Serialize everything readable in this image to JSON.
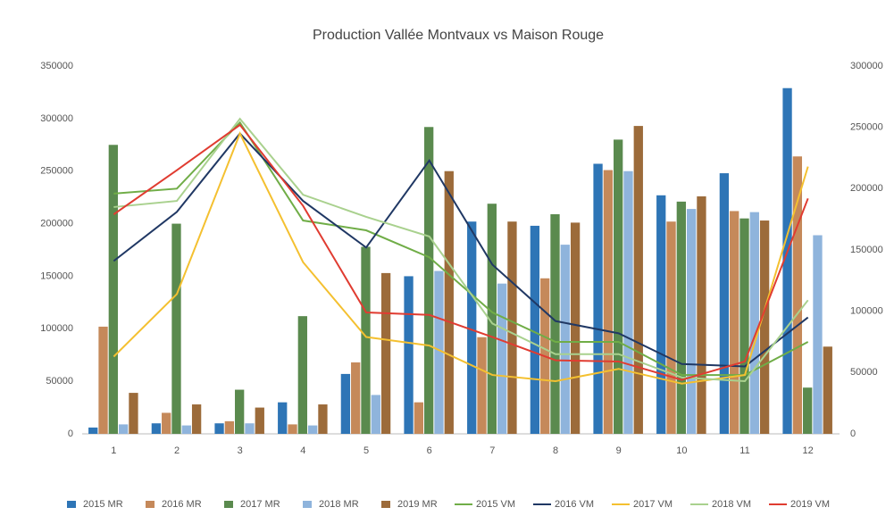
{
  "chart_data": {
    "type": "bar_line",
    "title": "Production Vallée Montvaux vs Maison Rouge",
    "categories": [
      "1",
      "2",
      "3",
      "4",
      "5",
      "6",
      "7",
      "8",
      "9",
      "10",
      "11",
      "12"
    ],
    "ylim": [
      0,
      350000
    ],
    "yticks": [
      0,
      50000,
      100000,
      150000,
      200000,
      250000,
      300000,
      350000
    ],
    "y2lim": [
      0,
      300000
    ],
    "y2ticks": [
      0,
      50000,
      100000,
      150000,
      200000,
      250000,
      300000
    ],
    "grid": false,
    "legend": "bottom",
    "series": [
      {
        "name": "2015 MR",
        "kind": "bar",
        "color": "#2e75b6",
        "values": [
          6000,
          10000,
          10000,
          30000,
          57000,
          150000,
          202000,
          198000,
          257000,
          227000,
          248000,
          329000
        ]
      },
      {
        "name": "2016 MR",
        "kind": "bar",
        "color": "#c5895a",
        "values": [
          102000,
          20000,
          12000,
          9000,
          68000,
          30000,
          92000,
          148000,
          251000,
          202000,
          212000,
          264000
        ]
      },
      {
        "name": "2017 MR",
        "kind": "bar",
        "color": "#5a8a4e",
        "values": [
          275000,
          200000,
          42000,
          112000,
          178000,
          292000,
          219000,
          209000,
          280000,
          221000,
          205000,
          44000
        ]
      },
      {
        "name": "2018 MR",
        "kind": "bar",
        "color": "#8fb4dc",
        "values": [
          9000,
          8000,
          10000,
          8000,
          37000,
          155000,
          143000,
          180000,
          250000,
          214000,
          211000,
          189000
        ]
      },
      {
        "name": "2019 MR",
        "kind": "bar",
        "color": "#9c6b3a",
        "values": [
          39000,
          28000,
          25000,
          28000,
          153000,
          250000,
          202000,
          201000,
          293000,
          226000,
          203000,
          83000
        ]
      },
      {
        "name": "2015 VM",
        "kind": "line",
        "axis": "y2",
        "color": "#70ad47",
        "values": [
          196000,
          200000,
          254000,
          174000,
          166000,
          144000,
          99000,
          75000,
          75000,
          48000,
          48000,
          75000
        ]
      },
      {
        "name": "2016 VM",
        "kind": "line",
        "axis": "y2",
        "color": "#203864",
        "values": [
          141000,
          181000,
          245000,
          190000,
          152000,
          223000,
          138000,
          92000,
          82000,
          57000,
          55000,
          95000
        ]
      },
      {
        "name": "2017 VM",
        "kind": "line",
        "axis": "y2",
        "color": "#f4c030",
        "values": [
          63000,
          114000,
          245000,
          140000,
          79000,
          72000,
          48000,
          43000,
          53000,
          41000,
          48000,
          218000
        ]
      },
      {
        "name": "2018 VM",
        "kind": "line",
        "axis": "y2",
        "color": "#a9d18e",
        "values": [
          185000,
          190000,
          257000,
          195000,
          177000,
          161000,
          90000,
          65000,
          65000,
          46000,
          43000,
          109000
        ]
      },
      {
        "name": "2019 VM",
        "kind": "line",
        "axis": "y2",
        "color": "#e03c31",
        "values": [
          179000,
          215000,
          252000,
          186000,
          99000,
          97000,
          79000,
          60000,
          59000,
          44000,
          59000,
          192000
        ]
      }
    ]
  }
}
